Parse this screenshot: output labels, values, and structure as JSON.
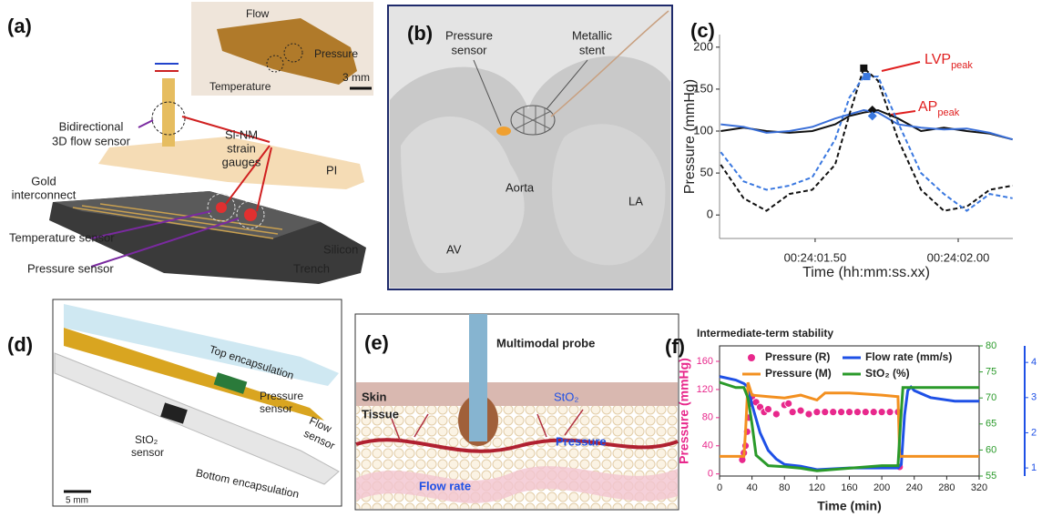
{
  "panels": {
    "a": {
      "label": "(a)",
      "inset": {
        "flow": "Flow",
        "pressure": "Pressure",
        "temperature": "Temperature",
        "scale": "3 mm"
      },
      "flow_sensor": [
        "Bidirectional",
        "3D flow sensor"
      ],
      "strain_gauges": [
        "Si-NM",
        "strain",
        "gauges"
      ],
      "pi": "PI",
      "gold": [
        "Gold",
        "interconnect"
      ],
      "silicon": "Silicon",
      "temperature_sensor": "Temperature sensor",
      "pressure_sensor": "Pressure sensor",
      "trench": "Trench"
    },
    "b": {
      "label": "(b)",
      "pressure_sensor": [
        "Pressure",
        "sensor"
      ],
      "stent": [
        "Metallic",
        "stent"
      ],
      "aorta": "Aorta",
      "la": "LA",
      "av": "AV"
    },
    "c": {
      "label": "(c)"
    },
    "d": {
      "label": "(d)",
      "top": "Top encapsulation",
      "pressure": [
        "Pressure",
        "sensor"
      ],
      "flow": [
        "Flow",
        "sensor"
      ],
      "sto2": [
        "StO₂",
        "sensor"
      ],
      "bottom": "Bottom encapsulation",
      "scale": "5 mm"
    },
    "e": {
      "label": "(e)",
      "probe": "Multimodal probe",
      "skin": "Skin",
      "tissue": "Tissue",
      "sto2": "StO₂",
      "pressure": "Pressure",
      "flow": "Flow rate"
    },
    "f": {
      "label": "(f)"
    }
  },
  "chart_data": [
    {
      "type": "line",
      "y_label": "Pressure (mmHg)",
      "x_label": "Time (hh:mm:ss.xx)",
      "x": [
        1.17,
        1.25,
        1.33,
        1.41,
        1.49,
        1.57,
        1.62,
        1.67,
        1.72,
        1.79,
        1.87,
        1.95,
        2.03,
        2.11,
        2.19
      ],
      "xlim": [
        1.166,
        2.191
      ],
      "xticks": [
        {
          "value": 1.5,
          "label": "00:24:01.50"
        },
        {
          "value": 2.0,
          "label": "00:24:02.00"
        }
      ],
      "ylim": [
        -28,
        215
      ],
      "yticks": [
        0,
        50,
        100,
        150,
        200
      ],
      "series": [
        {
          "color": "#111111",
          "dash": false,
          "values": [
            100,
            104,
            100,
            98,
            100,
            108,
            118,
            122,
            125,
            115,
            100,
            104,
            100,
            97,
            90
          ]
        },
        {
          "color": "#3a6fd8",
          "dash": false,
          "values": [
            108,
            105,
            98,
            100,
            105,
            115,
            120,
            125,
            122,
            108,
            104,
            102,
            103,
            98,
            90
          ]
        },
        {
          "color": "#111111",
          "dash": true,
          "values": [
            60,
            20,
            5,
            25,
            30,
            60,
            120,
            175,
            160,
            90,
            30,
            5,
            10,
            30,
            35
          ]
        },
        {
          "color": "#3a78e0",
          "dash": true,
          "values": [
            75,
            40,
            30,
            35,
            45,
            90,
            140,
            165,
            165,
            110,
            50,
            25,
            5,
            25,
            20
          ]
        }
      ],
      "peak_markers": [
        {
          "x": 1.67,
          "y": 175,
          "color": "#111111",
          "shape": "square"
        },
        {
          "x": 1.68,
          "y": 165,
          "color": "#3a78e0",
          "shape": "square"
        },
        {
          "x": 1.7,
          "y": 125,
          "color": "#111111",
          "shape": "diamond"
        },
        {
          "x": 1.7,
          "y": 118,
          "color": "#3a78e0",
          "shape": "diamond"
        }
      ],
      "annotations": [
        {
          "text": "LVP",
          "sub": "peak",
          "color": "#e02020"
        },
        {
          "text": "AP",
          "sub": "peak",
          "color": "#e02020"
        }
      ]
    },
    {
      "type": "line",
      "title": "Intermediate-term stability",
      "x_label": "Time (min)",
      "y_label": "Pressure (mmHg)",
      "xlim": [
        0,
        320
      ],
      "xticks": [
        0,
        40,
        80,
        120,
        160,
        200,
        240,
        280,
        320
      ],
      "ylim": [
        -3,
        182
      ],
      "yticks": [
        0,
        40,
        80,
        120,
        160
      ],
      "y2lim": [
        55,
        80
      ],
      "y2ticks": [
        55,
        60,
        65,
        70,
        75,
        80
      ],
      "y3lim": [
        0.77,
        4.47
      ],
      "y3ticks": [
        1,
        2,
        3,
        4
      ],
      "axis_colors": {
        "y": "#e8288c",
        "y2": "#2a9a2a",
        "y3": "#1e50e6"
      },
      "series": [
        {
          "name": "Pressure (R)",
          "color": "#e8288c",
          "mode": "markers",
          "axis": "y",
          "x": [
            28,
            30,
            32,
            34,
            36,
            38,
            40,
            45,
            50,
            55,
            60,
            70,
            80,
            85,
            90,
            100,
            110,
            120,
            130,
            140,
            150,
            160,
            170,
            180,
            190,
            200,
            210,
            220,
            222
          ],
          "values": [
            20,
            30,
            40,
            60,
            80,
            100,
            110,
            102,
            95,
            88,
            92,
            85,
            98,
            100,
            88,
            90,
            85,
            88,
            88,
            88,
            88,
            88,
            88,
            88,
            88,
            88,
            88,
            88,
            10
          ]
        },
        {
          "name": "Flow rate (mm/s)",
          "color": "#1e50e6",
          "mode": "line",
          "axis": "y3",
          "x": [
            0,
            20,
            30,
            35,
            40,
            50,
            60,
            70,
            80,
            100,
            120,
            160,
            200,
            220,
            224,
            228,
            232,
            236,
            240,
            260,
            290,
            320
          ],
          "values": [
            3.6,
            3.5,
            3.4,
            3.3,
            2.8,
            2.0,
            1.5,
            1.25,
            1.1,
            1.05,
            0.95,
            1.0,
            1.0,
            1.0,
            1.1,
            2.5,
            3.2,
            3.3,
            3.2,
            3.0,
            2.9,
            2.9
          ]
        },
        {
          "name": "Pressure (M)",
          "color": "#f39020",
          "mode": "line",
          "axis": "y",
          "x": [
            0,
            30,
            32,
            35,
            40,
            60,
            80,
            100,
            120,
            130,
            160,
            200,
            220,
            222,
            240,
            280,
            320
          ],
          "values": [
            25,
            25,
            60,
            130,
            112,
            110,
            108,
            112,
            105,
            115,
            115,
            112,
            110,
            25,
            25,
            25,
            25
          ]
        },
        {
          "name": "StO₂ (%)",
          "color": "#2a9a2a",
          "mode": "line",
          "axis": "y2",
          "x": [
            0,
            20,
            30,
            35,
            40,
            45,
            60,
            80,
            100,
            120,
            160,
            200,
            220,
            223,
            226,
            240,
            280,
            320
          ],
          "values": [
            73,
            72,
            72,
            70,
            65,
            59,
            57,
            56.8,
            56.5,
            56,
            56.5,
            57,
            57,
            65,
            72,
            72,
            72,
            72
          ]
        }
      ]
    }
  ]
}
